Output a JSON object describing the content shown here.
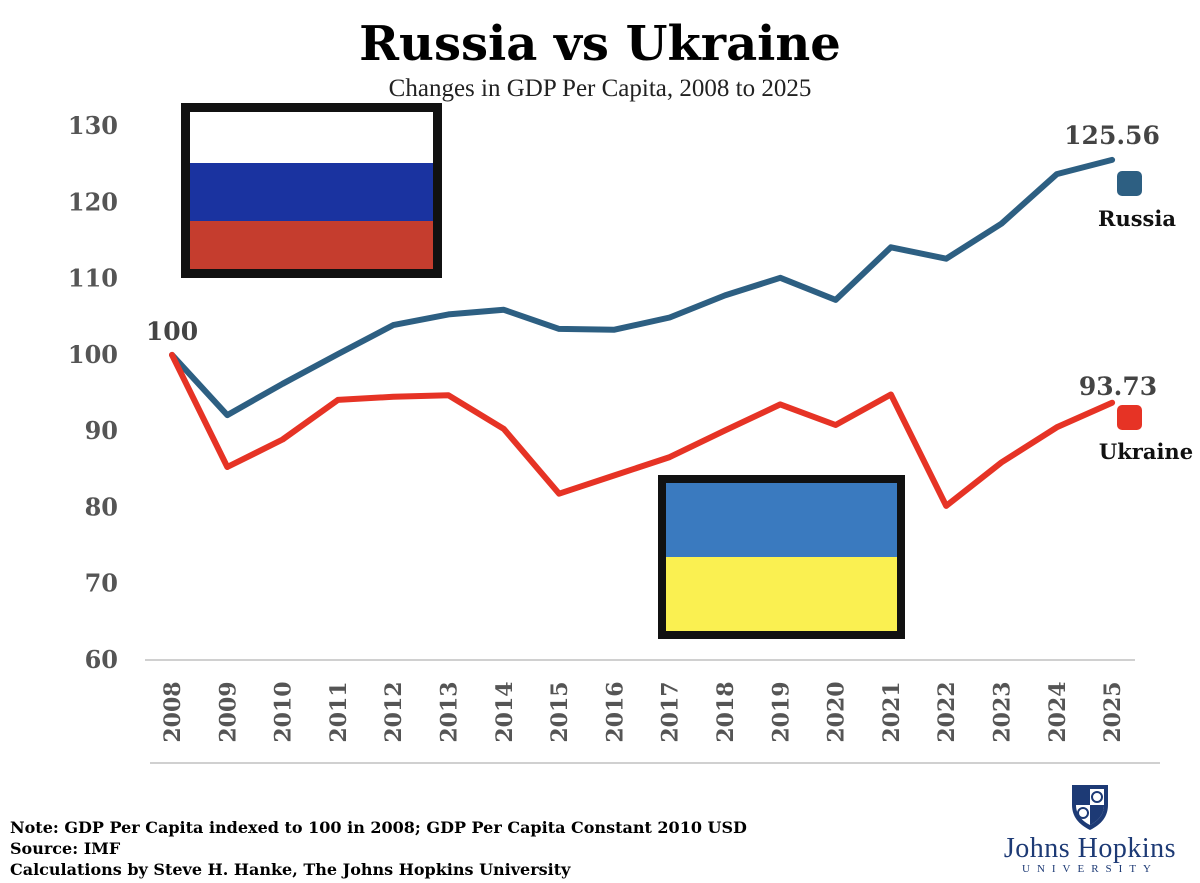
{
  "header": {
    "title": "Russia vs Ukraine",
    "subtitle": "Changes in GDP Per Capita, 2008 to 2025"
  },
  "chart_data": {
    "type": "line",
    "title": "Russia vs Ukraine",
    "subtitle": "Changes in GDP Per Capita, 2008 to 2025",
    "x": [
      "2008",
      "2009",
      "2010",
      "2011",
      "2012",
      "2013",
      "2014",
      "2015",
      "2016",
      "2017",
      "2018",
      "2019",
      "2020",
      "2021",
      "2022",
      "2023",
      "2024",
      "2025"
    ],
    "series": [
      {
        "name": "Russia",
        "color": "#2d5f82",
        "values": [
          100,
          92.1,
          96.2,
          100.1,
          103.9,
          105.3,
          105.9,
          103.4,
          103.3,
          104.9,
          107.8,
          110.1,
          107.2,
          114.1,
          112.6,
          117.2,
          123.7,
          125.56
        ]
      },
      {
        "name": "Ukraine",
        "color": "#e63325",
        "values": [
          100,
          85.3,
          88.9,
          94.1,
          94.5,
          94.7,
          90.3,
          81.8,
          84.2,
          86.6,
          90.1,
          93.5,
          90.8,
          94.8,
          80.2,
          85.9,
          90.5,
          93.73
        ]
      }
    ],
    "yticks": [
      130,
      120,
      110,
      100,
      90,
      80,
      70,
      60
    ],
    "ylim": [
      60,
      130
    ],
    "start_label": "100",
    "end_labels": {
      "russia": "125.56",
      "ukraine": "93.73"
    },
    "legend": [
      {
        "name": "Russia",
        "color": "#2d5f82"
      },
      {
        "name": "Ukraine",
        "color": "#e63325"
      }
    ],
    "legend_placement": "right, at line ends",
    "grid": false,
    "flags": [
      {
        "name": "russia-flag",
        "stripes": [
          "#ffffff",
          "#1a33a0",
          "#c53d2e"
        ]
      },
      {
        "name": "ukraine-flag",
        "stripes": [
          "#3a7abf",
          "#faf051"
        ]
      }
    ]
  },
  "notes": {
    "line1": "Note: GDP Per Capita indexed to 100 in 2008; GDP Per Capita Constant 2010 USD",
    "line2": "Source: IMF",
    "line3": "Calculations by Steve H. Hanke, The Johns Hopkins University"
  },
  "logo": {
    "name": "Johns Hopkins",
    "university": "UNIVERSITY"
  }
}
